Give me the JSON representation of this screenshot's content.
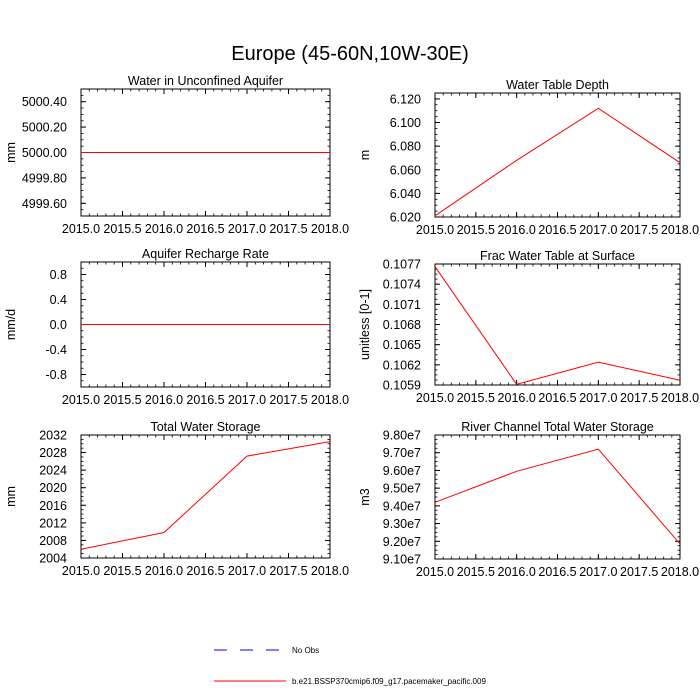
{
  "figure": {
    "title": "Europe (45-60N,10W-30E)"
  },
  "legend": {
    "entries": [
      {
        "label": "No Obs",
        "color": "#0000ff",
        "style": "dashed"
      },
      {
        "label": "b.e21.BSSP370cmip6.f09_g17.pacemaker_pacific.009",
        "color": "#ff0000",
        "style": "solid"
      }
    ]
  },
  "chart_data": [
    {
      "type": "line",
      "title": "Water in Unconfined Aquifer",
      "xlabel": "",
      "ylabel": "mm",
      "xlim": [
        2015.0,
        2018.0
      ],
      "ylim": [
        4999.5,
        5000.5
      ],
      "xticks": [
        2015.0,
        2015.5,
        2016.0,
        2016.5,
        2017.0,
        2017.5,
        2018.0
      ],
      "xtick_labels": [
        "2015.0",
        "2015.5",
        "2016.0",
        "2016.5",
        "2017.0",
        "2017.5",
        "2018.0"
      ],
      "yticks": [
        4999.6,
        4999.8,
        5000.0,
        5000.2,
        5000.4
      ],
      "ytick_labels": [
        "4999.60",
        "4999.80",
        "5000.00",
        "5000.20",
        "5000.40"
      ],
      "series": [
        {
          "name": "b.e21.BSSP370cmip6.f09_g17.pacemaker_pacific.009",
          "color": "#ff0000",
          "x": [
            2015,
            2016,
            2017,
            2018
          ],
          "values": [
            5000.0,
            5000.0,
            5000.0,
            5000.0
          ]
        }
      ]
    },
    {
      "type": "line",
      "title": "Water Table Depth",
      "xlabel": "",
      "ylabel": "m",
      "xlim": [
        2015.0,
        2018.0
      ],
      "ylim": [
        6.02,
        6.125
      ],
      "xticks": [
        2015.0,
        2015.5,
        2016.0,
        2016.5,
        2017.0,
        2017.5,
        2018.0
      ],
      "xtick_labels": [
        "2015.0",
        "2015.5",
        "2016.0",
        "2016.5",
        "2017.0",
        "2017.5",
        "2018.0"
      ],
      "yticks": [
        6.02,
        6.04,
        6.06,
        6.08,
        6.1,
        6.12
      ],
      "ytick_labels": [
        "6.020",
        "6.040",
        "6.060",
        "6.080",
        "6.100",
        "6.120"
      ],
      "series": [
        {
          "name": "b.e21.BSSP370cmip6.f09_g17.pacemaker_pacific.009",
          "color": "#ff0000",
          "x": [
            2015,
            2016,
            2017,
            2018
          ],
          "values": [
            6.021,
            6.068,
            6.112,
            6.066
          ]
        }
      ]
    },
    {
      "type": "line",
      "title": "Aquifer Recharge Rate",
      "xlabel": "",
      "ylabel": "mm/d",
      "xlim": [
        2015.0,
        2018.0
      ],
      "ylim": [
        -1.0,
        1.0
      ],
      "xticks": [
        2015.0,
        2015.5,
        2016.0,
        2016.5,
        2017.0,
        2017.5,
        2018.0
      ],
      "xtick_labels": [
        "2015.0",
        "2015.5",
        "2016.0",
        "2016.5",
        "2017.0",
        "2017.5",
        "2018.0"
      ],
      "yticks": [
        -0.8,
        -0.4,
        0.0,
        0.4,
        0.8
      ],
      "ytick_labels": [
        "-0.8",
        "-0.4",
        "0.0",
        "0.4",
        "0.8"
      ],
      "series": [
        {
          "name": "b.e21.BSSP370cmip6.f09_g17.pacemaker_pacific.009",
          "color": "#ff0000",
          "x": [
            2015,
            2016,
            2017,
            2018
          ],
          "values": [
            0.0,
            0.0,
            0.0,
            0.0
          ]
        }
      ]
    },
    {
      "type": "line",
      "title": "Frac Water Table at Surface",
      "xlabel": "",
      "ylabel": "unitless [0-1]",
      "xlim": [
        2015.0,
        2018.0
      ],
      "ylim": [
        0.1059,
        0.1077
      ],
      "xticks": [
        2015.0,
        2015.5,
        2016.0,
        2016.5,
        2017.0,
        2017.5,
        2018.0
      ],
      "xtick_labels": [
        "2015.0",
        "2015.5",
        "2016.0",
        "2016.5",
        "2017.0",
        "2017.5",
        "2018.0"
      ],
      "yticks": [
        0.1059,
        0.1062,
        0.1065,
        0.1068,
        0.1071,
        0.1074,
        0.1077
      ],
      "ytick_labels": [
        "0.1059",
        "0.1062",
        "0.1065",
        "0.1068",
        "0.1071",
        "0.1074",
        "0.1077"
      ],
      "series": [
        {
          "name": "b.e21.BSSP370cmip6.f09_g17.pacemaker_pacific.009",
          "color": "#ff0000",
          "x": [
            2015,
            2016,
            2017,
            2018
          ],
          "values": [
            0.10766,
            0.10591,
            0.10624,
            0.10597
          ]
        }
      ]
    },
    {
      "type": "line",
      "title": "Total Water Storage",
      "xlabel": "",
      "ylabel": "mm",
      "xlim": [
        2015.0,
        2018.0
      ],
      "ylim": [
        2004,
        2032
      ],
      "xticks": [
        2015.0,
        2015.5,
        2016.0,
        2016.5,
        2017.0,
        2017.5,
        2018.0
      ],
      "xtick_labels": [
        "2015.0",
        "2015.5",
        "2016.0",
        "2016.5",
        "2017.0",
        "2017.5",
        "2018.0"
      ],
      "yticks": [
        2004,
        2008,
        2012,
        2016,
        2020,
        2024,
        2028,
        2032
      ],
      "ytick_labels": [
        "2004",
        "2008",
        "2012",
        "2016",
        "2020",
        "2024",
        "2028",
        "2032"
      ],
      "series": [
        {
          "name": "b.e21.BSSP370cmip6.f09_g17.pacemaker_pacific.009",
          "color": "#ff0000",
          "x": [
            2015,
            2016,
            2017,
            2018
          ],
          "values": [
            2006.0,
            2009.8,
            2027.2,
            2030.5
          ]
        }
      ]
    },
    {
      "type": "line",
      "title": "River Channel Total Water Storage",
      "xlabel": "",
      "ylabel": "m3",
      "xlim": [
        2015.0,
        2018.0
      ],
      "ylim": [
        91000000,
        98000000
      ],
      "xticks": [
        2015.0,
        2015.5,
        2016.0,
        2016.5,
        2017.0,
        2017.5,
        2018.0
      ],
      "xtick_labels": [
        "2015.0",
        "2015.5",
        "2016.0",
        "2016.5",
        "2017.0",
        "2017.5",
        "2018.0"
      ],
      "yticks": [
        91000000,
        92000000,
        93000000,
        94000000,
        95000000,
        96000000,
        97000000,
        98000000
      ],
      "ytick_labels": [
        "9.10e7",
        "9.20e7",
        "9.30e7",
        "9.40e7",
        "9.50e7",
        "9.60e7",
        "9.70e7",
        "9.80e7"
      ],
      "series": [
        {
          "name": "b.e21.BSSP370cmip6.f09_g17.pacemaker_pacific.009",
          "color": "#ff0000",
          "x": [
            2015,
            2016,
            2017,
            2018
          ],
          "values": [
            94200000,
            95950000,
            97200000,
            91850000
          ]
        }
      ]
    }
  ]
}
